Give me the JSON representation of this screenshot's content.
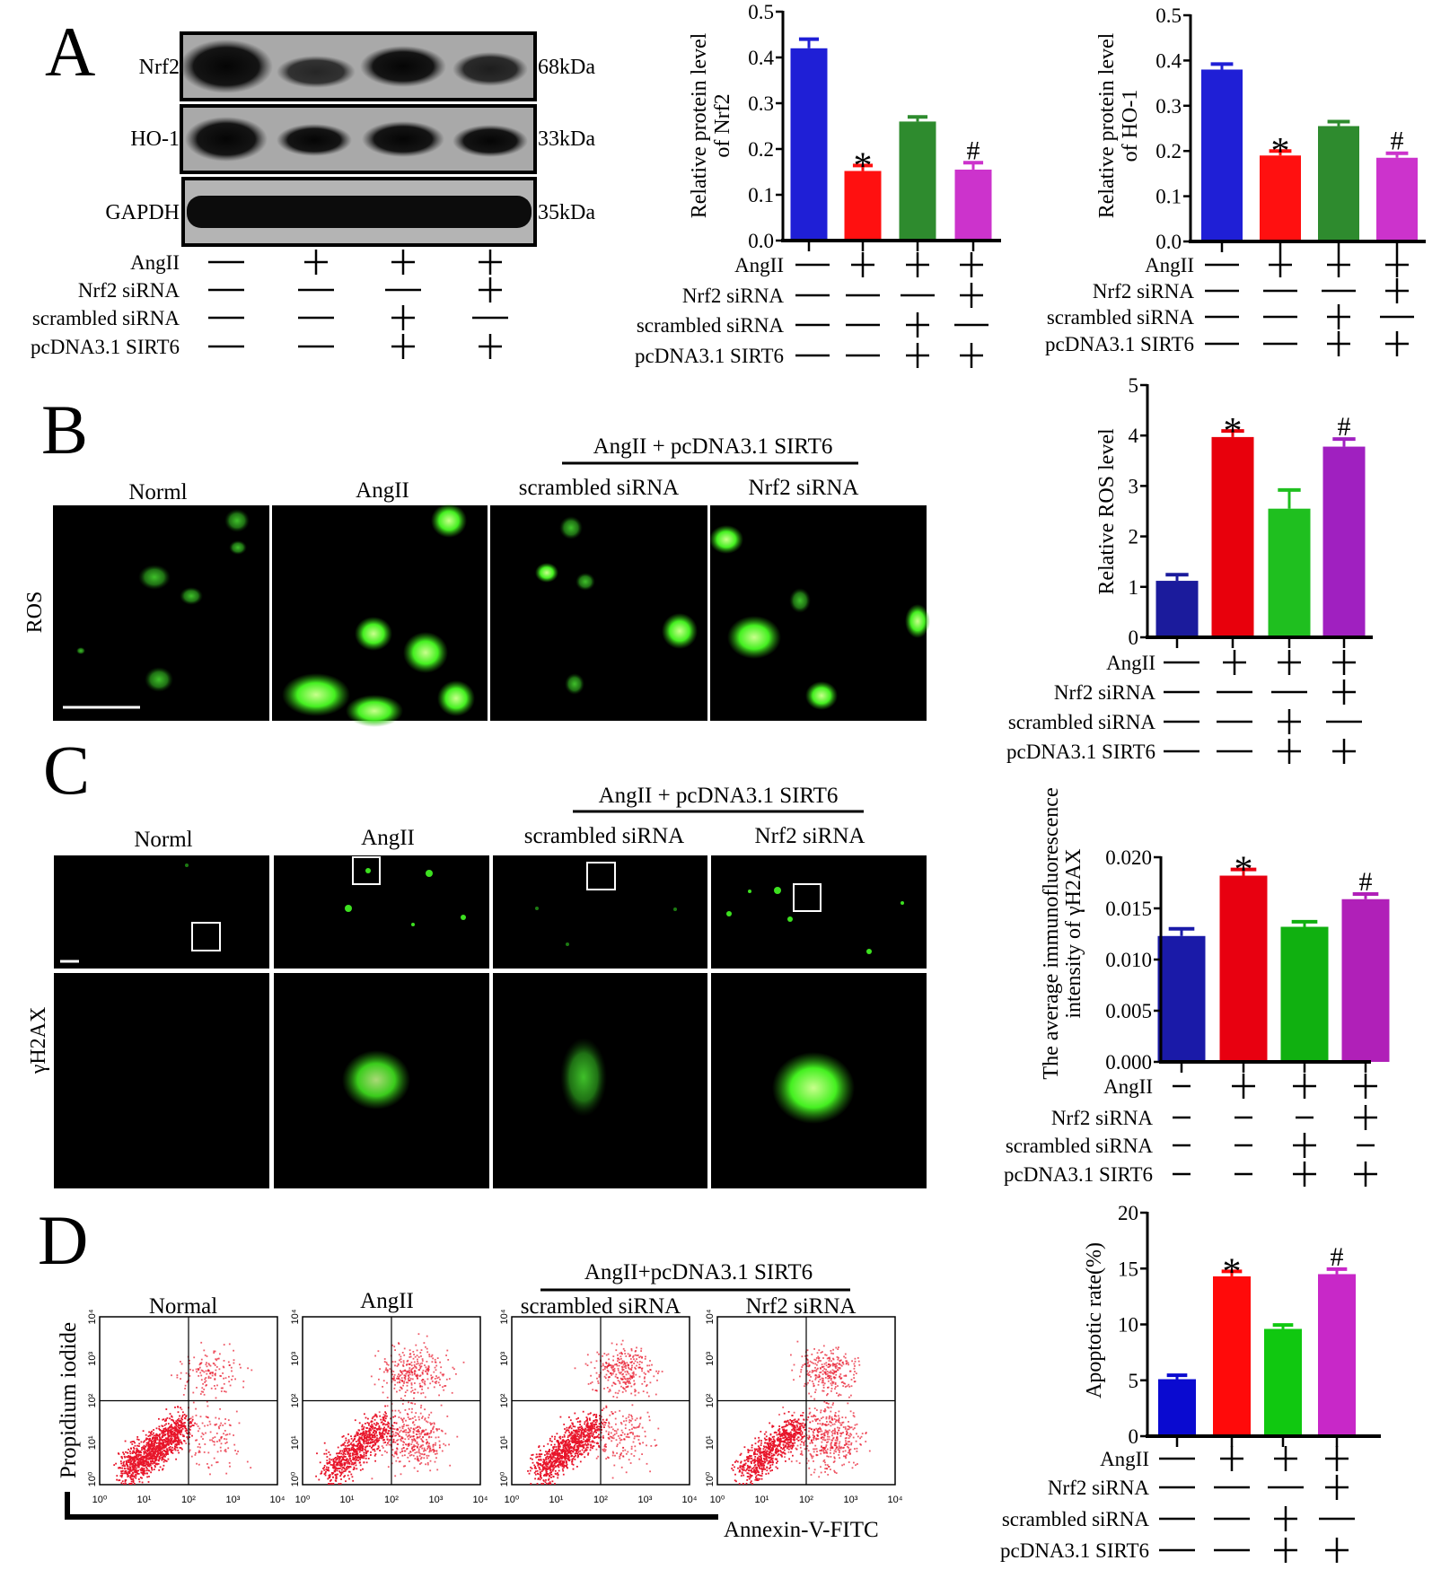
{
  "treatment_table": {
    "labels": [
      "AngII",
      "Nrf2 siRNA",
      "scrambled siRNA",
      "pcDNA3.1 SIRT6"
    ],
    "values": [
      [
        "−",
        "+",
        "+",
        "+"
      ],
      [
        "−",
        "−",
        "−",
        "+"
      ],
      [
        "−",
        "−",
        "+",
        "−"
      ],
      [
        "−",
        "−",
        "+",
        "+"
      ]
    ]
  },
  "panel_a": {
    "letter": "A",
    "blots": [
      {
        "protein": "Nrf2",
        "size": "68kDa"
      },
      {
        "protein": "HO-1",
        "size": "33kDa"
      },
      {
        "protein": "GAPDH",
        "size": "35kDa"
      }
    ]
  },
  "panel_b": {
    "letter": "B",
    "header": "AngII  + pcDNA3.1 SIRT6",
    "columns": [
      "Norml",
      "AngII",
      "scrambled siRNA",
      "Nrf2 siRNA"
    ],
    "row_label": "ROS"
  },
  "panel_c": {
    "letter": "C",
    "header": "AngII  + pcDNA3.1 SIRT6",
    "columns": [
      "Norml",
      "AngII",
      "scrambled siRNA",
      "Nrf2 siRNA"
    ],
    "row_label": "γH2AX"
  },
  "panel_d": {
    "letter": "D",
    "header": "AngII+pcDNA3.1 SIRT6",
    "columns": [
      "Normal",
      "AngII",
      "scrambled siRNA",
      "Nrf2 siRNA"
    ],
    "ylabel": "Propidium iodide",
    "xlabel": "Annexin-V-FITC",
    "axis_tick_labels": [
      "10⁰",
      "10¹",
      "10²",
      "10³",
      "10⁴"
    ]
  },
  "chart_data": [
    {
      "id": "nrf2",
      "type": "bar",
      "ylabel": [
        "Relative protein level",
        "of  Nrf2"
      ],
      "ylim": [
        0,
        0.5
      ],
      "yticks": [
        0,
        0.1,
        0.2,
        0.3,
        0.4,
        0.5
      ],
      "ytick_labels": [
        "0.0",
        "0.1",
        "0.2",
        "0.3",
        "0.4",
        "0.5"
      ],
      "values": [
        0.42,
        0.152,
        0.26,
        0.155
      ],
      "errors": [
        0.02,
        0.012,
        0.01,
        0.015
      ],
      "annotations": [
        "",
        "*",
        "",
        "#"
      ],
      "colors": [
        "#1f1fd6",
        "#ff1010",
        "#2e8b2e",
        "#cc33cc"
      ],
      "grid": false
    },
    {
      "id": "ho1",
      "type": "bar",
      "ylabel": [
        "Relative protein level",
        "of  HO-1"
      ],
      "ylim": [
        0,
        0.5
      ],
      "yticks": [
        0,
        0.1,
        0.2,
        0.3,
        0.4,
        0.5
      ],
      "ytick_labels": [
        "0.0",
        "0.1",
        "0.2",
        "0.3",
        "0.4",
        "0.5"
      ],
      "values": [
        0.38,
        0.19,
        0.255,
        0.185
      ],
      "errors": [
        0.012,
        0.01,
        0.01,
        0.01
      ],
      "annotations": [
        "",
        "*",
        "",
        "#"
      ],
      "colors": [
        "#1f1fd6",
        "#ff1010",
        "#2e8b2e",
        "#cc33cc"
      ],
      "grid": false
    },
    {
      "id": "ros",
      "type": "bar",
      "ylabel": [
        "Relative ROS level"
      ],
      "ylim": [
        0,
        5
      ],
      "yticks": [
        0,
        1,
        2,
        3,
        4,
        5
      ],
      "ytick_labels": [
        "0",
        "1",
        "2",
        "3",
        "4",
        "5"
      ],
      "values": [
        1.12,
        3.97,
        2.55,
        3.78
      ],
      "errors": [
        0.12,
        0.12,
        0.37,
        0.15
      ],
      "annotations": [
        "",
        "*",
        "",
        "#"
      ],
      "colors": [
        "#1b1b9c",
        "#e8000c",
        "#1fbf1f",
        "#a020c0"
      ],
      "grid": false
    },
    {
      "id": "yh2ax",
      "type": "bar",
      "ylabel": [
        "The average immunofluorescence",
        "intensity of γH2AX"
      ],
      "ylim": [
        0,
        0.02
      ],
      "yticks": [
        0,
        0.005,
        0.01,
        0.015,
        0.02
      ],
      "ytick_labels": [
        "0.000",
        "0.005",
        "0.010",
        "0.015",
        "0.020"
      ],
      "values": [
        0.0123,
        0.0182,
        0.0132,
        0.0159
      ],
      "errors": [
        0.0007,
        0.0006,
        0.0005,
        0.0005
      ],
      "annotations": [
        "",
        "*",
        "",
        "#"
      ],
      "colors": [
        "#1a1aa8",
        "#e80010",
        "#10b010",
        "#b020b8"
      ],
      "grid": false
    },
    {
      "id": "apoptosis",
      "type": "bar",
      "ylabel": [
        "Apoptotic rate(%)"
      ],
      "ylim": [
        0,
        20
      ],
      "yticks": [
        0,
        5,
        10,
        15,
        20
      ],
      "ytick_labels": [
        "0",
        "5",
        "10",
        "15",
        "20"
      ],
      "values": [
        5.1,
        14.3,
        9.6,
        14.5
      ],
      "errors": [
        0.35,
        0.45,
        0.35,
        0.45
      ],
      "annotations": [
        "",
        "*",
        "",
        "#"
      ],
      "colors": [
        "#0a0ad0",
        "#ff0a0a",
        "#10c810",
        "#c828c8"
      ],
      "grid": false
    }
  ]
}
